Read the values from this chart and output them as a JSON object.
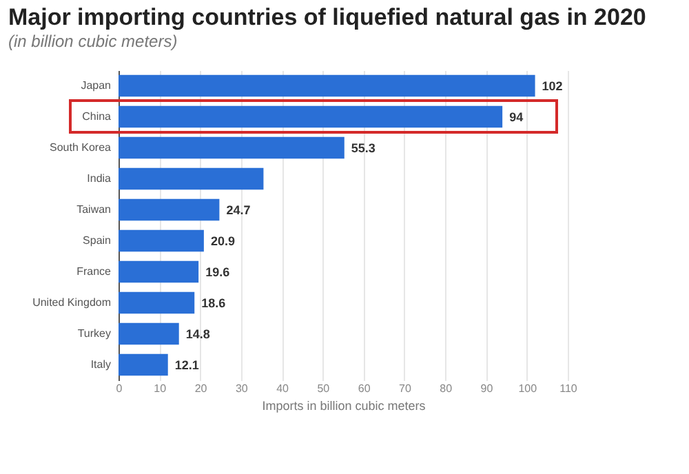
{
  "chart_data": {
    "type": "bar",
    "orientation": "horizontal",
    "title": "Major importing countries of liquefied natural gas in 2020",
    "subtitle": "(in billion cubic meters)",
    "xlabel": "Imports in billion cubic meters",
    "categories": [
      "Japan",
      "China",
      "South Korea",
      "India",
      "Taiwan",
      "Spain",
      "France",
      "United Kingdom",
      "Turkey",
      "Italy"
    ],
    "values": [
      102,
      94,
      55.3,
      35.5,
      24.7,
      20.9,
      19.6,
      18.6,
      14.8,
      12.1
    ],
    "value_labels": [
      "102",
      "94",
      "55.3",
      null,
      "24.7",
      "20.9",
      "19.6",
      "18.6",
      "14.8",
      "12.1"
    ],
    "color": "#2a6fd6",
    "xlim": [
      0,
      110
    ],
    "xticks": [
      0,
      10,
      20,
      30,
      40,
      50,
      60,
      70,
      80,
      90,
      100,
      110
    ],
    "grid": "x"
  }
}
